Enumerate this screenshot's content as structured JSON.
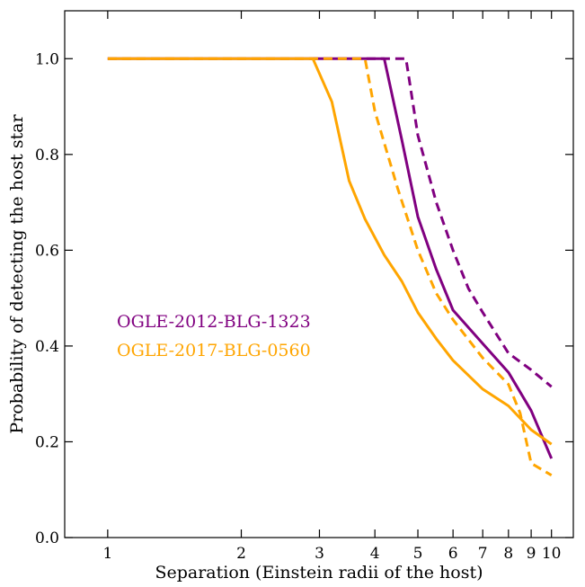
{
  "chart_data": {
    "type": "line",
    "xlabel": "Separation (Einstein radii of the host)",
    "ylabel": "Probability of detecting the host star",
    "x_scale": "log",
    "xlim": [
      0.8,
      11.2
    ],
    "ylim": [
      0.0,
      1.1
    ],
    "x_ticks": [
      1,
      2,
      3,
      4,
      5,
      6,
      7,
      8,
      9,
      10
    ],
    "x_tick_labels": [
      "1",
      "2",
      "3",
      "4",
      "5",
      "6",
      "7",
      "8",
      "9",
      "10"
    ],
    "y_ticks": [
      0.0,
      0.2,
      0.4,
      0.6,
      0.8,
      1.0
    ],
    "y_tick_labels": [
      "0.0",
      "0.2",
      "0.4",
      "0.6",
      "0.8",
      "1.0"
    ],
    "grid": false,
    "legend": {
      "placement": "center-left",
      "entries": [
        {
          "label": "OGLE-2012-BLG-1323",
          "color": "#800080"
        },
        {
          "label": "OGLE-2017-BLG-0560",
          "color": "#FFA500"
        }
      ]
    },
    "series": [
      {
        "color": "#800080",
        "style": "solid",
        "x": [
          1.0,
          4.2,
          4.6,
          5.0,
          5.5,
          6.0,
          7.0,
          8.0,
          9.0,
          10.0
        ],
        "y": [
          1.0,
          1.0,
          0.83,
          0.67,
          0.56,
          0.475,
          0.405,
          0.345,
          0.265,
          0.165
        ]
      },
      {
        "color": "#800080",
        "style": "dashed",
        "x": [
          1.0,
          4.7,
          5.0,
          5.5,
          6.0,
          6.5,
          7.0,
          8.0,
          9.0,
          10.0
        ],
        "y": [
          1.0,
          1.0,
          0.84,
          0.7,
          0.6,
          0.52,
          0.47,
          0.385,
          0.35,
          0.315
        ]
      },
      {
        "color": "#FFA500",
        "style": "solid",
        "x": [
          1.0,
          2.9,
          3.2,
          3.5,
          3.8,
          4.2,
          4.6,
          5.0,
          5.5,
          6.0,
          7.0,
          8.0,
          9.0,
          10.0
        ],
        "y": [
          1.0,
          1.0,
          0.91,
          0.745,
          0.665,
          0.59,
          0.535,
          0.47,
          0.415,
          0.37,
          0.31,
          0.275,
          0.225,
          0.195
        ]
      },
      {
        "color": "#FFA500",
        "style": "dashed",
        "x": [
          1.0,
          3.8,
          4.0,
          4.5,
          5.0,
          5.5,
          6.0,
          7.0,
          8.0,
          8.5,
          9.0,
          10.0
        ],
        "y": [
          1.0,
          1.0,
          0.89,
          0.73,
          0.6,
          0.51,
          0.455,
          0.375,
          0.32,
          0.26,
          0.155,
          0.13
        ]
      }
    ]
  }
}
